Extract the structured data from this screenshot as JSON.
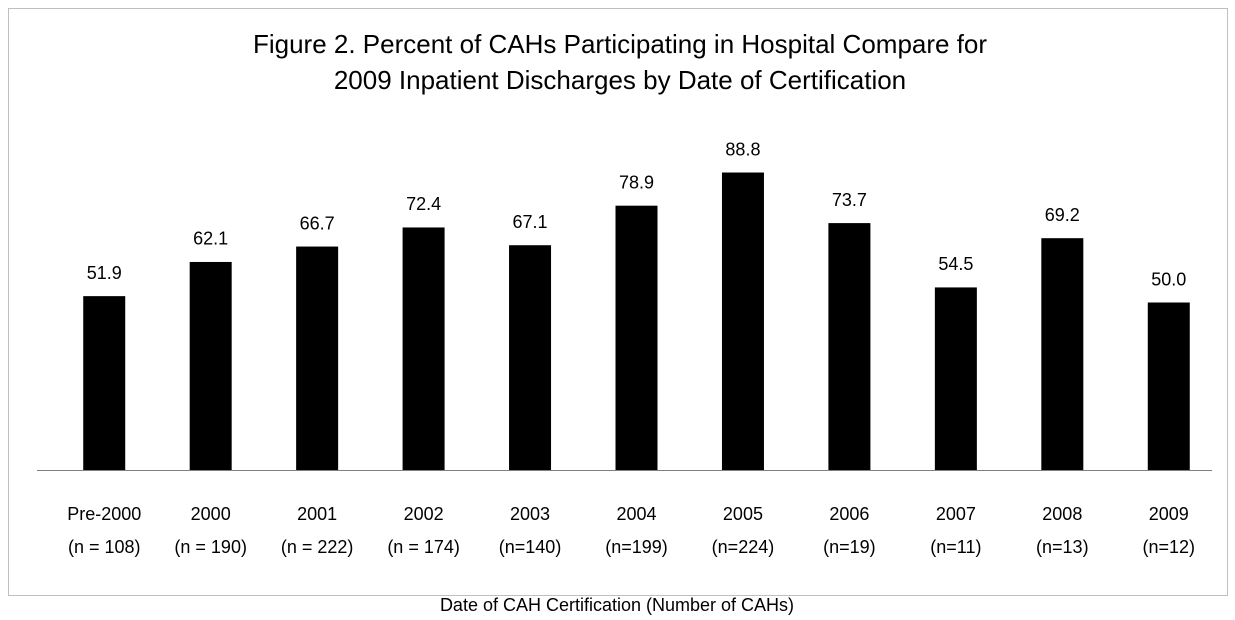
{
  "chart_data": {
    "type": "bar",
    "title": [
      "Figure 2. Percent of CAHs Participating in Hospital Compare for",
      "2009 Inpatient Discharges by Date of Certification"
    ],
    "x_label": "Date of CAH Certification (Number of CAHs)",
    "categories": [
      [
        "Pre-2000",
        "(n = 108)"
      ],
      [
        "2000",
        "(n = 190)"
      ],
      [
        "2001",
        "(n = 222)"
      ],
      [
        "2002",
        "(n = 174)"
      ],
      [
        "2003",
        "(n=140)"
      ],
      [
        "2004",
        "(n=199)"
      ],
      [
        "2005",
        "(n=224)"
      ],
      [
        "2006",
        "(n=19)"
      ],
      [
        "2007",
        "(n=11)"
      ],
      [
        "2008",
        "(n=13)"
      ],
      [
        "2009",
        "(n=12)"
      ]
    ],
    "values": [
      51.9,
      62.1,
      66.7,
      72.4,
      67.1,
      78.9,
      88.8,
      73.7,
      54.5,
      69.2,
      50.0
    ],
    "value_labels": [
      "51.9",
      "62.1",
      "66.7",
      "72.4",
      "67.1",
      "78.9",
      "88.8",
      "73.7",
      "54.5",
      "69.2",
      "50.0"
    ],
    "color": "#000000",
    "ylim": [
      0,
      100
    ]
  }
}
